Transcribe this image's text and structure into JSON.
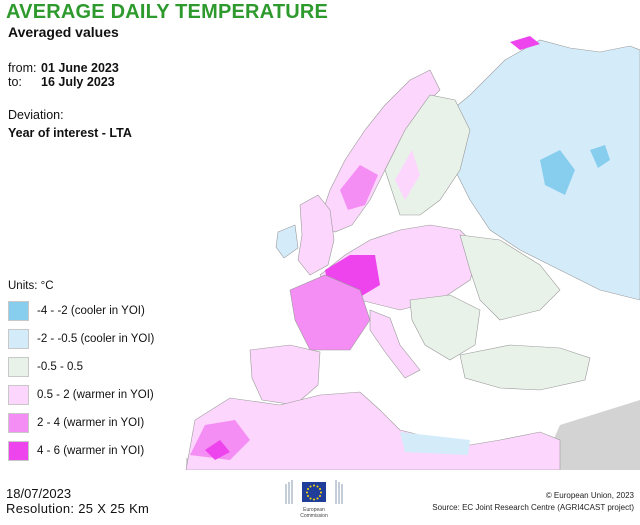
{
  "header": {
    "title": "AVERAGE DAILY TEMPERATURE",
    "subtitle": "Averaged values"
  },
  "period": {
    "from_label": "from:",
    "from_date": "01 June 2023",
    "to_label": "to:",
    "to_date": "16 July 2023"
  },
  "deviation": {
    "label": "Deviation:",
    "value": "Year of interest - LTA"
  },
  "legend": {
    "units": "Units: °C",
    "items": [
      {
        "label": "-4 - -2 (cooler in YOI)",
        "color": "#87ceee"
      },
      {
        "label": "-2 - -0.5 (cooler in YOI)",
        "color": "#d4ecfa"
      },
      {
        "label": "-0.5 - 0.5",
        "color": "#e9f2e9"
      },
      {
        "label": "0.5 - 2 (warmer in YOI)",
        "color": "#fcd6fc"
      },
      {
        "label": "2 - 4 (warmer in YOI)",
        "color": "#f48df4"
      },
      {
        "label": "4 - 6 (warmer in YOI)",
        "color": "#ee44ee"
      }
    ]
  },
  "footer": {
    "date": "18/07/2023",
    "resolution": "Resolution: 25 X 25 Km",
    "copyright": "© European Union, 2023",
    "source": "Source: EC Joint Research Centre (AGRI4CAST project)",
    "logo_line1": "European",
    "logo_line2": "Commission"
  },
  "map_colors": {
    "sea": "#ffffff",
    "border": "#9a9a9a",
    "outside": "#d3d3d3"
  }
}
